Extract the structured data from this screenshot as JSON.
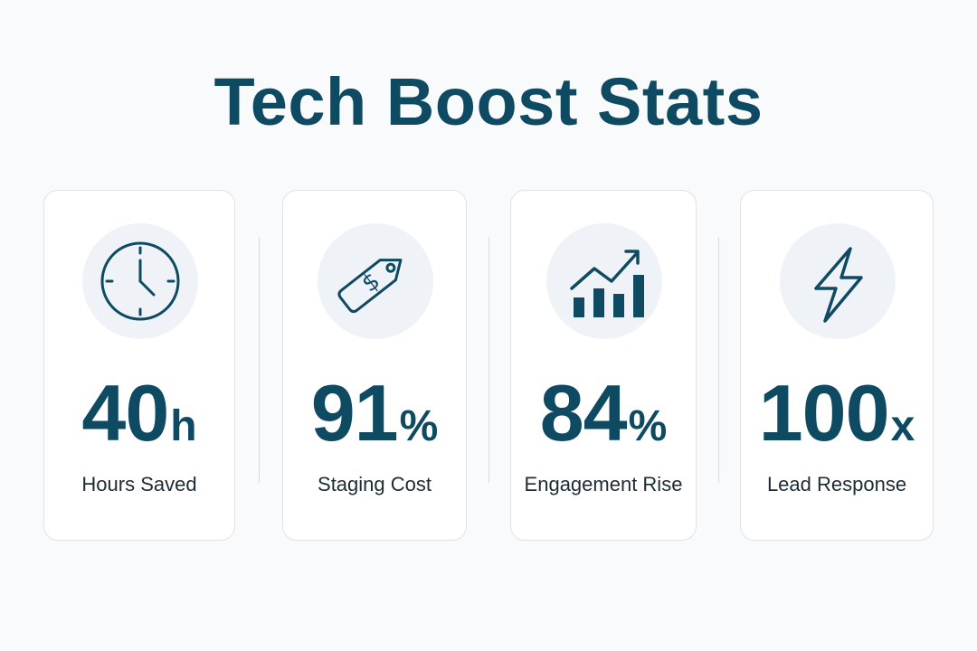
{
  "title": "Tech Boost Stats",
  "colors": {
    "primary": "#0f4a63",
    "icon_bg": "#eff3f7",
    "card_border": "#dfe3e8",
    "label_text": "#1d2b36"
  },
  "stats": [
    {
      "icon": "clock-icon",
      "number": "40",
      "unit": "h",
      "label": "Hours Saved"
    },
    {
      "icon": "price-tag-icon",
      "number": "91",
      "unit": "%",
      "label": "Staging Cost"
    },
    {
      "icon": "growth-chart-icon",
      "number": "84",
      "unit": "%",
      "label": "Engagement Rise"
    },
    {
      "icon": "lightning-bolt-icon",
      "number": "100",
      "unit": "x",
      "label": "Lead Response"
    }
  ]
}
